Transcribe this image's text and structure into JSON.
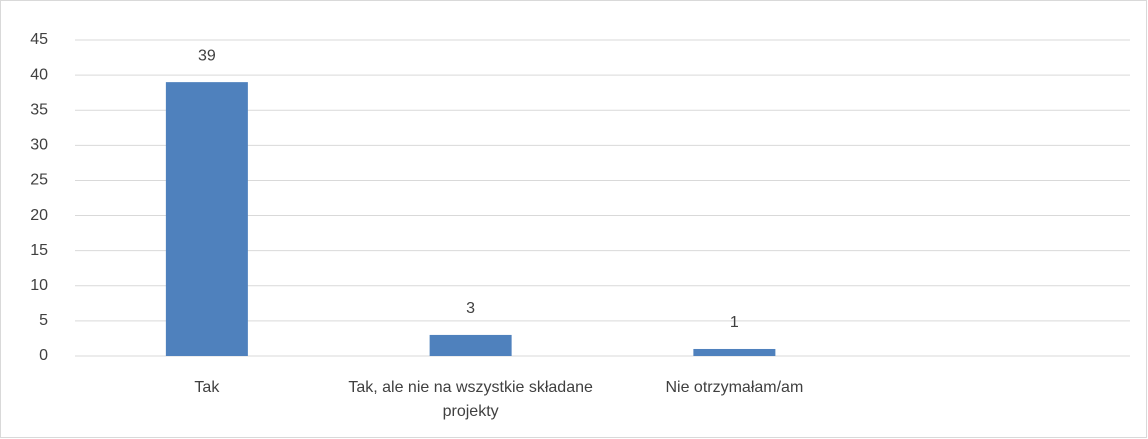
{
  "chart_data": {
    "type": "bar",
    "categories": [
      "Tak",
      "Tak, ale nie na wszystkie składane projekty",
      "Nie otrzymałam/am",
      null
    ],
    "values": [
      39,
      3,
      1,
      null
    ],
    "color": "#4f81bd",
    "ylim": [
      0,
      45
    ],
    "yticks": [
      0,
      5,
      10,
      15,
      20,
      25,
      30,
      35,
      40,
      45
    ],
    "grid": true
  }
}
